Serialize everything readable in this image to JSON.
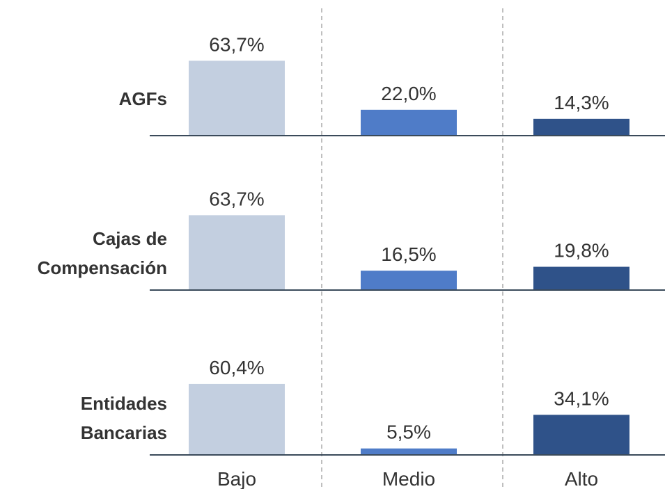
{
  "chart_data": {
    "type": "bar",
    "categories": [
      "Bajo",
      "Medio",
      "Alto"
    ],
    "colors": [
      "#c3cfe0",
      "#4f7cc8",
      "#2f5289"
    ],
    "series": [
      {
        "name": "AGFs",
        "values": [
          63.7,
          22.0,
          14.3
        ],
        "value_labels": [
          "63,7%",
          "22,0%",
          "14,3%"
        ]
      },
      {
        "name": "Cajas de Compensación",
        "values": [
          63.7,
          16.5,
          19.8
        ],
        "value_labels": [
          "63,7%",
          "16,5%",
          "19,8%"
        ]
      },
      {
        "name": "Entidades Bancarias",
        "values": [
          60.4,
          5.5,
          34.1
        ],
        "value_labels": [
          "60,4%",
          "5,5%",
          "34,1%"
        ]
      }
    ]
  }
}
